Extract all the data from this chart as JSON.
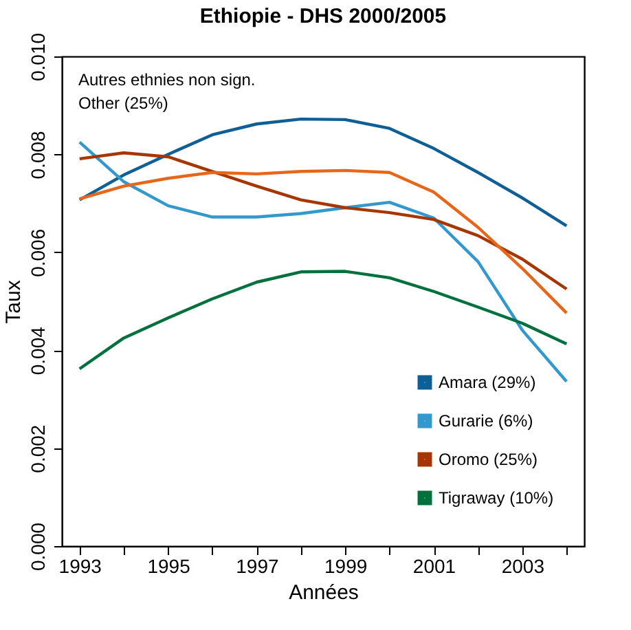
{
  "chart_data": {
    "type": "line",
    "title": "Ethiopie - DHS 2000/2005",
    "xlabel": "Années",
    "ylabel": "Taux",
    "x": [
      1993,
      1994,
      1995,
      1996,
      1997,
      1998,
      1999,
      2000,
      2001,
      2002,
      2003,
      2004
    ],
    "series": [
      {
        "name": "Amara (29%)",
        "color": "#0d5f96",
        "values": [
          0.00707,
          0.00758,
          0.008,
          0.0084,
          0.00862,
          0.00872,
          0.00871,
          0.00853,
          0.00812,
          0.00763,
          0.00711,
          0.00654
        ]
      },
      {
        "name": "Gurarie (6%)",
        "color": "#3399cc",
        "values": [
          0.00825,
          0.00744,
          0.00695,
          0.00672,
          0.00672,
          0.00679,
          0.00691,
          0.00702,
          0.0067,
          0.00581,
          0.00441,
          0.00336
        ]
      },
      {
        "name": "Oromo (25%)",
        "color": "#a63603",
        "values": [
          0.00791,
          0.00803,
          0.00795,
          0.00765,
          0.00735,
          0.00707,
          0.00691,
          0.00681,
          0.00667,
          0.00634,
          0.00586,
          0.00525
        ]
      },
      {
        "name": "Tigraway (10%)",
        "color": "#00703c",
        "values": [
          0.00362,
          0.00425,
          0.00466,
          0.00505,
          0.00539,
          0.0056,
          0.00561,
          0.00548,
          0.0052,
          0.00488,
          0.00455,
          0.00413
        ]
      },
      {
        "color": "#e6661a",
        "values": [
          0.00709,
          0.00735,
          0.00751,
          0.00763,
          0.0076,
          0.00765,
          0.00767,
          0.00763,
          0.00723,
          0.00651,
          0.00567,
          0.00476
        ]
      }
    ],
    "annotations": [
      "Autres ethnies non sign.\nOther (25%)"
    ],
    "xlim": [
      1992.6,
      2004.4
    ],
    "xticks": [
      1993,
      {
        "value": 1994,
        "label": null
      },
      1995,
      {
        "value": 1996,
        "label": null
      },
      1997,
      {
        "value": 1998,
        "label": null
      },
      1999,
      {
        "value": 2000,
        "label": null
      },
      2001,
      {
        "value": 2002,
        "label": null
      },
      2003,
      {
        "value": 2004,
        "label": null
      }
    ],
    "ylim": [
      0,
      0.01
    ],
    "yticks": [
      {
        "value": 0,
        "label": "0.000"
      },
      {
        "value": 0.002,
        "label": "0.002"
      },
      {
        "value": 0.004,
        "label": "0.004"
      },
      {
        "value": 0.006,
        "label": "0.006"
      },
      {
        "value": 0.008,
        "label": "0.008"
      },
      {
        "value": 0.01,
        "label": "0.010"
      }
    ],
    "grid": false,
    "legend": "bottom right",
    "line_style": "solid",
    "marker": "none"
  }
}
